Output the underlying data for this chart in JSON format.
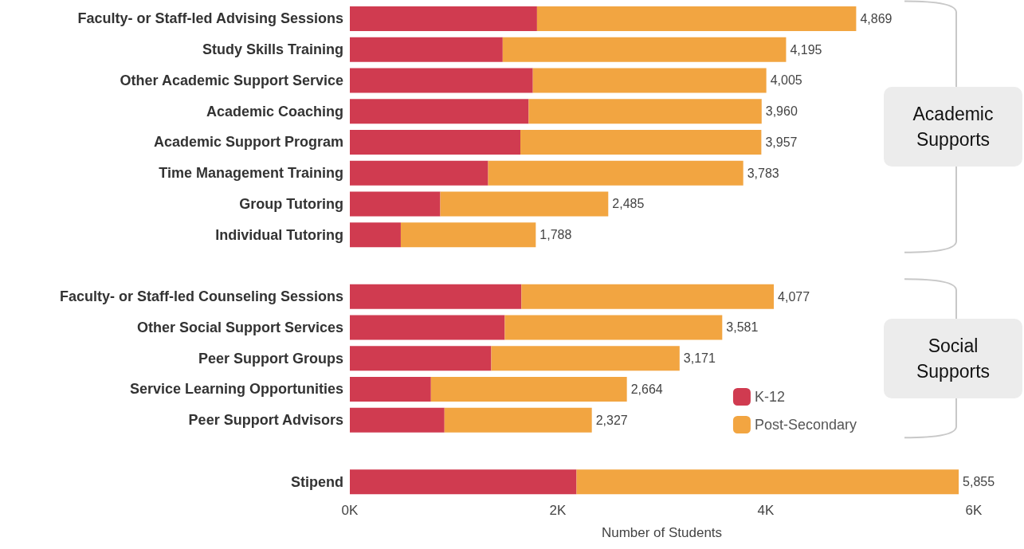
{
  "chart_data": {
    "type": "bar",
    "orientation": "horizontal",
    "stacked": true,
    "xlabel": "Number of Students",
    "categories": [
      "Faculty- or Staff-led Advising Sessions",
      "Study Skills Training",
      "Other Academic Support Service",
      "Academic Coaching",
      "Academic Support Program",
      "Time Management Training",
      "Group Tutoring",
      "Individual Tutoring",
      null,
      "Faculty- or Staff-led Counseling Sessions",
      "Other Social Support Services",
      "Peer Support Groups",
      "Service Learning Opportunities",
      "Peer Support Advisors",
      null,
      "Stipend"
    ],
    "series": [
      {
        "name": "K-12",
        "color": "#d03b50",
        "values": [
          1800,
          1470,
          1760,
          1720,
          1640,
          1330,
          870,
          490,
          null,
          1650,
          1490,
          1360,
          780,
          910,
          null,
          2180
        ]
      },
      {
        "name": "Post-Secondary",
        "color": "#f2a541",
        "values": [
          3069,
          2725,
          2245,
          2240,
          2317,
          2453,
          1615,
          1298,
          null,
          2427,
          2091,
          1811,
          1884,
          1417,
          null,
          3675
        ]
      }
    ],
    "totals": [
      "4,869",
      "4,195",
      "4,005",
      "3,960",
      "3,957",
      "3,783",
      "2,485",
      "1,788",
      null,
      "4,077",
      "3,581",
      "3,171",
      "2,664",
      "2,327",
      null,
      "5,855"
    ],
    "xlim": [
      0,
      6000
    ],
    "xticks": [
      {
        "value": 0,
        "label": "0K"
      },
      {
        "value": 2000,
        "label": "2K"
      },
      {
        "value": 4000,
        "label": "4K"
      },
      {
        "value": 6000,
        "label": "6K"
      }
    ],
    "grid": false,
    "legend": "bottom right",
    "annotations": [
      "Academic Supports",
      "Social Supports"
    ]
  }
}
